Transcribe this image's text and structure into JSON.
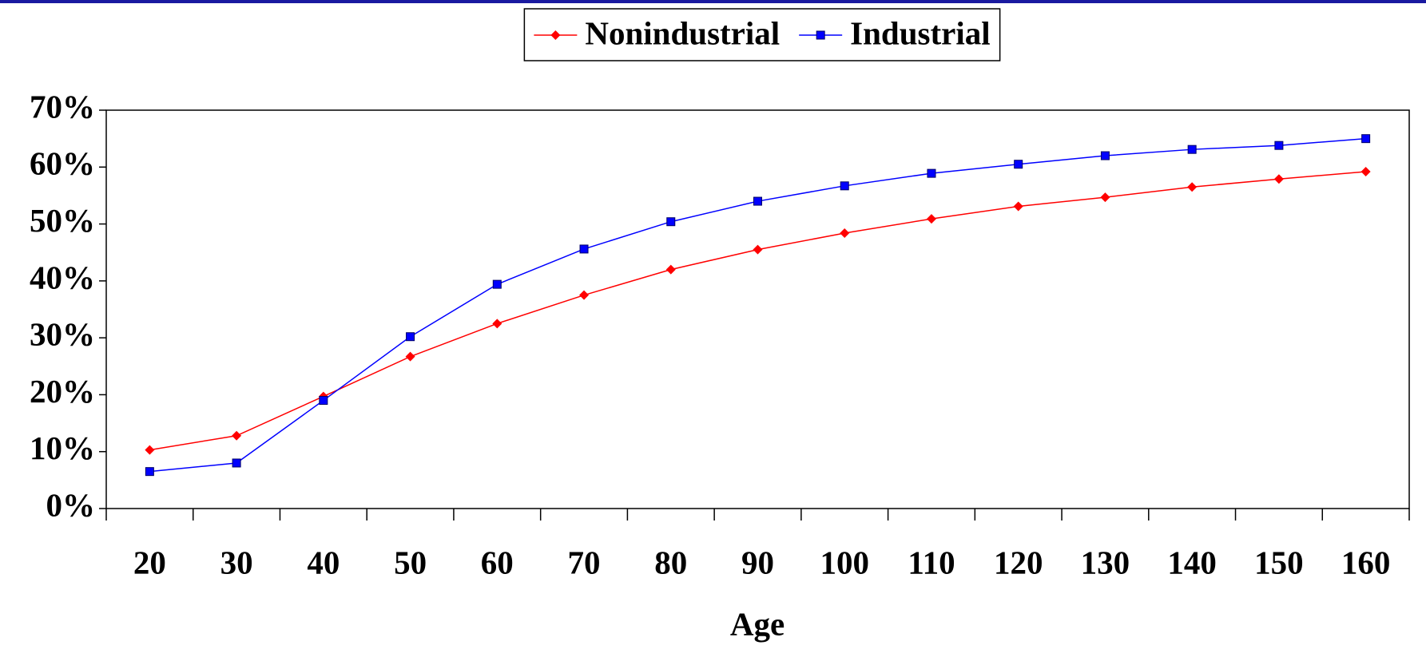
{
  "chart_data": {
    "type": "line",
    "xlabel": "Age",
    "categories": [
      "20",
      "30",
      "40",
      "50",
      "60",
      "70",
      "80",
      "90",
      "100",
      "110",
      "120",
      "130",
      "140",
      "150",
      "160"
    ],
    "series": [
      {
        "name": "Nonindustrial",
        "color": "#ff0000",
        "marker": "diamond",
        "values": [
          10.3,
          12.8,
          19.7,
          26.7,
          32.5,
          37.5,
          42,
          45.5,
          48.4,
          50.9,
          53.1,
          54.7,
          56.5,
          57.9,
          59.2
        ]
      },
      {
        "name": "Industrial",
        "color": "#0000ff",
        "marker": "square",
        "values": [
          6.5,
          8,
          19,
          30.2,
          39.4,
          45.6,
          50.4,
          54,
          56.7,
          58.9,
          60.5,
          62,
          63.1,
          63.8,
          65
        ]
      }
    ],
    "ylim": [
      0,
      70
    ],
    "yticks": [
      {
        "value": 0,
        "label": "0%"
      },
      {
        "value": 10,
        "label": "10%"
      },
      {
        "value": 20,
        "label": "20%"
      },
      {
        "value": 30,
        "label": "30%"
      },
      {
        "value": 40,
        "label": "40%"
      },
      {
        "value": 50,
        "label": "50%"
      },
      {
        "value": 60,
        "label": "60%"
      },
      {
        "value": 70,
        "label": "70%"
      }
    ],
    "grid": false,
    "legend": "top"
  }
}
